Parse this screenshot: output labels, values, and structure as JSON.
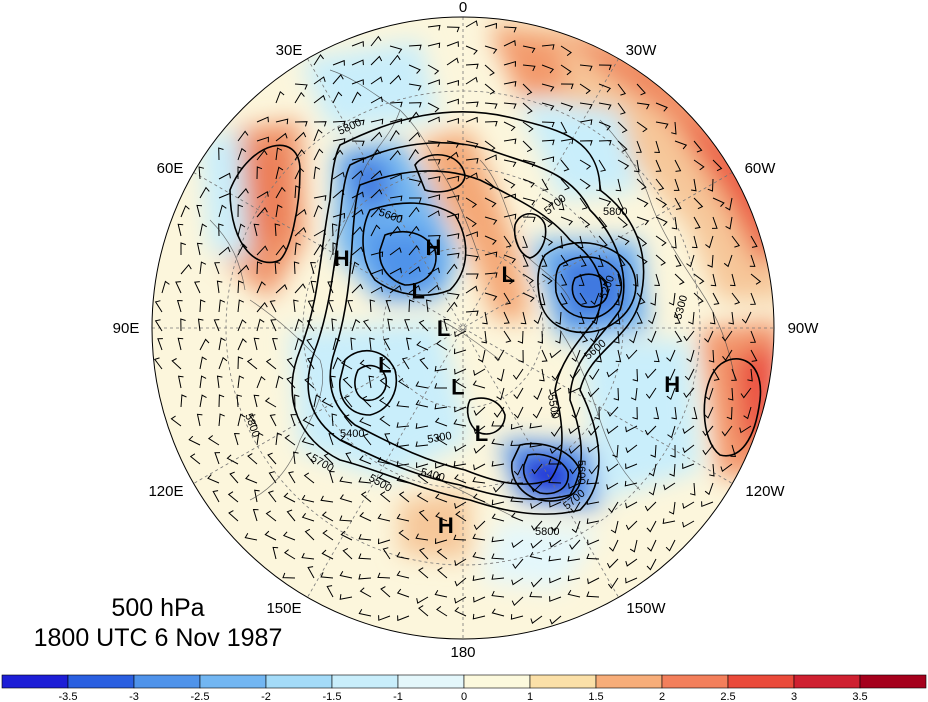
{
  "title": {
    "level": "500 hPa",
    "datetime": "1800 UTC 6 Nov 1987"
  },
  "longitude_labels": [
    "0",
    "30W",
    "60W",
    "90W",
    "120W",
    "150W",
    "180",
    "150E",
    "120E",
    "90E",
    "60E",
    "30E"
  ],
  "pressure_centers": [
    {
      "type": "H",
      "lat": 55,
      "lon": 60
    },
    {
      "type": "H",
      "lat": 68,
      "lon": 20
    },
    {
      "type": "H",
      "lat": 38,
      "lon": -105
    },
    {
      "type": "H",
      "lat": 42,
      "lon": 175
    },
    {
      "type": "L",
      "lat": 75,
      "lon": 50
    },
    {
      "type": "L",
      "lat": 72,
      "lon": -40
    },
    {
      "type": "L",
      "lat": 85,
      "lon": 90
    },
    {
      "type": "L",
      "lat": 68,
      "lon": 115
    },
    {
      "type": "L",
      "lat": 75,
      "lon": 175
    },
    {
      "type": "L",
      "lat": 63,
      "lon": -170
    }
  ],
  "contour_labels": [
    "5800",
    "5700",
    "5800",
    "5600",
    "5400",
    "5300",
    "5500",
    "5700",
    "5800",
    "5600",
    "5700",
    "5800",
    "5600",
    "5500",
    "5400",
    "5200",
    "5300"
  ],
  "colorbar": {
    "ticks": [
      "-3.5",
      "-3",
      "-2.5",
      "-2",
      "-1.5",
      "-1",
      "0",
      "1",
      "1.5",
      "2",
      "2.5",
      "3",
      "3.5"
    ],
    "colors": [
      "#1d1ed6",
      "#2a5fe0",
      "#4f93ea",
      "#72b6f2",
      "#a4dbf8",
      "#c9eefb",
      "#e4f7fb",
      "#fcf9dd",
      "#fbe0a8",
      "#f7ad79",
      "#f37f5b",
      "#ea4a3a",
      "#cf2030",
      "#a5001c"
    ]
  }
}
